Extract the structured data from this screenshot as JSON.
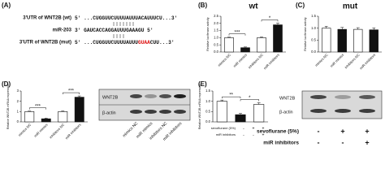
{
  "panels": {
    "letters": [
      "(A)",
      "(B)",
      "(C)",
      "(D)",
      "(E)"
    ],
    "A": {
      "rows": [
        {
          "label": "3'UTR of WNT2B (wt)",
          "seq": [
            "5'  ...CUGGUUCUUUUAUUUACAUUUCU...3'"
          ]
        },
        {
          "label": "miR-203",
          "seq": [
            "3'  GAUCACCAGGAUUUGAAAGU 5'"
          ]
        },
        {
          "label": "3'UTR of WNT2B (mut)",
          "seq": [
            "5'  ...CUGGUUCUUUUAUUU",
            "GUAA",
            "CUU...3'"
          ]
        }
      ]
    },
    "blots": [
      {
        "rows": [
          "WNT2B",
          "β-actin"
        ],
        "lanes": [
          "mimics NC",
          "miR mimics",
          "inhibitors NC",
          "miR inhibitors"
        ]
      },
      {
        "rows": [
          "WNT2B",
          "β-actin"
        ],
        "treatments": [
          {
            "name": "sevoflurane (5%)",
            "marks": [
              "-",
              "+",
              "+"
            ]
          },
          {
            "name": "miR inhibitors",
            "marks": [
              "-",
              "-",
              "+"
            ]
          }
        ]
      }
    ]
  },
  "chart_data": [
    {
      "type": "bar",
      "title": "wt",
      "y_label": "Relative luciferase activity",
      "categories": [
        "mimics NC",
        "miR mimics",
        "inhibitors NC",
        "miR inhibitors"
      ],
      "values": [
        1.0,
        0.3,
        1.0,
        1.9
      ],
      "errors": [
        0.04,
        0.05,
        0.05,
        0.12
      ],
      "colors": [
        "#ffffff",
        "#111111",
        "#ffffff",
        "#111111"
      ],
      "ylim": [
        0,
        2.5
      ],
      "yticks": [
        {
          "value": 0,
          "label": "0.0"
        },
        {
          "value": 0.5,
          "label": "0.5"
        },
        {
          "value": 1,
          "label": "1.0"
        },
        {
          "value": 1.5,
          "label": "1.5"
        },
        {
          "value": 2,
          "label": "2.0"
        },
        {
          "value": 2.5,
          "label": "2.5"
        }
      ],
      "annotations": [
        "***",
        "*"
      ]
    },
    {
      "type": "bar",
      "title": "mut",
      "y_label": "Relative luciferase activity",
      "categories": [
        "mimics NC",
        "miR mimics",
        "inhibitors NC",
        "miR inhibitors"
      ],
      "values": [
        1.0,
        0.95,
        0.95,
        0.93
      ],
      "errors": [
        0.08,
        0.08,
        0.07,
        0.08
      ],
      "colors": [
        "#ffffff",
        "#111111",
        "#ffffff",
        "#111111"
      ],
      "ylim": [
        0,
        1.5
      ],
      "yticks": [
        {
          "value": 0,
          "label": "0.0"
        },
        {
          "value": 0.5,
          "label": "0.5"
        },
        {
          "value": 1,
          "label": "1.0"
        },
        {
          "value": 1.5,
          "label": "1.5"
        }
      ],
      "annotations": []
    },
    {
      "type": "bar",
      "y_label": "Relative WNT2B mRNA expression",
      "categories": [
        "mimics NC",
        "miR mimics",
        "inhibitors NC",
        "miR inhibitors"
      ],
      "values": [
        1.0,
        0.3,
        1.0,
        2.4
      ],
      "errors": [
        0.05,
        0.06,
        0.06,
        0.12
      ],
      "colors": [
        "#ffffff",
        "#111111",
        "#ffffff",
        "#111111"
      ],
      "ylim": [
        0,
        3
      ],
      "yticks": [
        0,
        1,
        2,
        3
      ],
      "annotations": [
        "***",
        "***"
      ]
    },
    {
      "type": "bar",
      "y_label": "Relative WNT2B mRNA expression",
      "categories": [
        null,
        null,
        null
      ],
      "values": [
        1.0,
        0.35,
        0.85
      ],
      "errors": [
        0.06,
        0.06,
        0.08
      ],
      "colors": [
        "#ffffff",
        "#111111",
        "#ffffff"
      ],
      "ylim": [
        0,
        1.5
      ],
      "yticks": [
        {
          "value": 0,
          "label": "0.0"
        },
        {
          "value": 0.5,
          "label": "0.5"
        },
        {
          "value": 1,
          "label": "1.0"
        },
        {
          "value": 1.5,
          "label": "1.5"
        }
      ],
      "annotations": [
        "**",
        "*"
      ],
      "treatments": [
        {
          "name": "sevoflurane (5%)",
          "marks": [
            "-",
            "+",
            "+"
          ]
        },
        {
          "name": "miR inhibitors",
          "marks": [
            "-",
            "-",
            "+"
          ]
        }
      ]
    }
  ]
}
